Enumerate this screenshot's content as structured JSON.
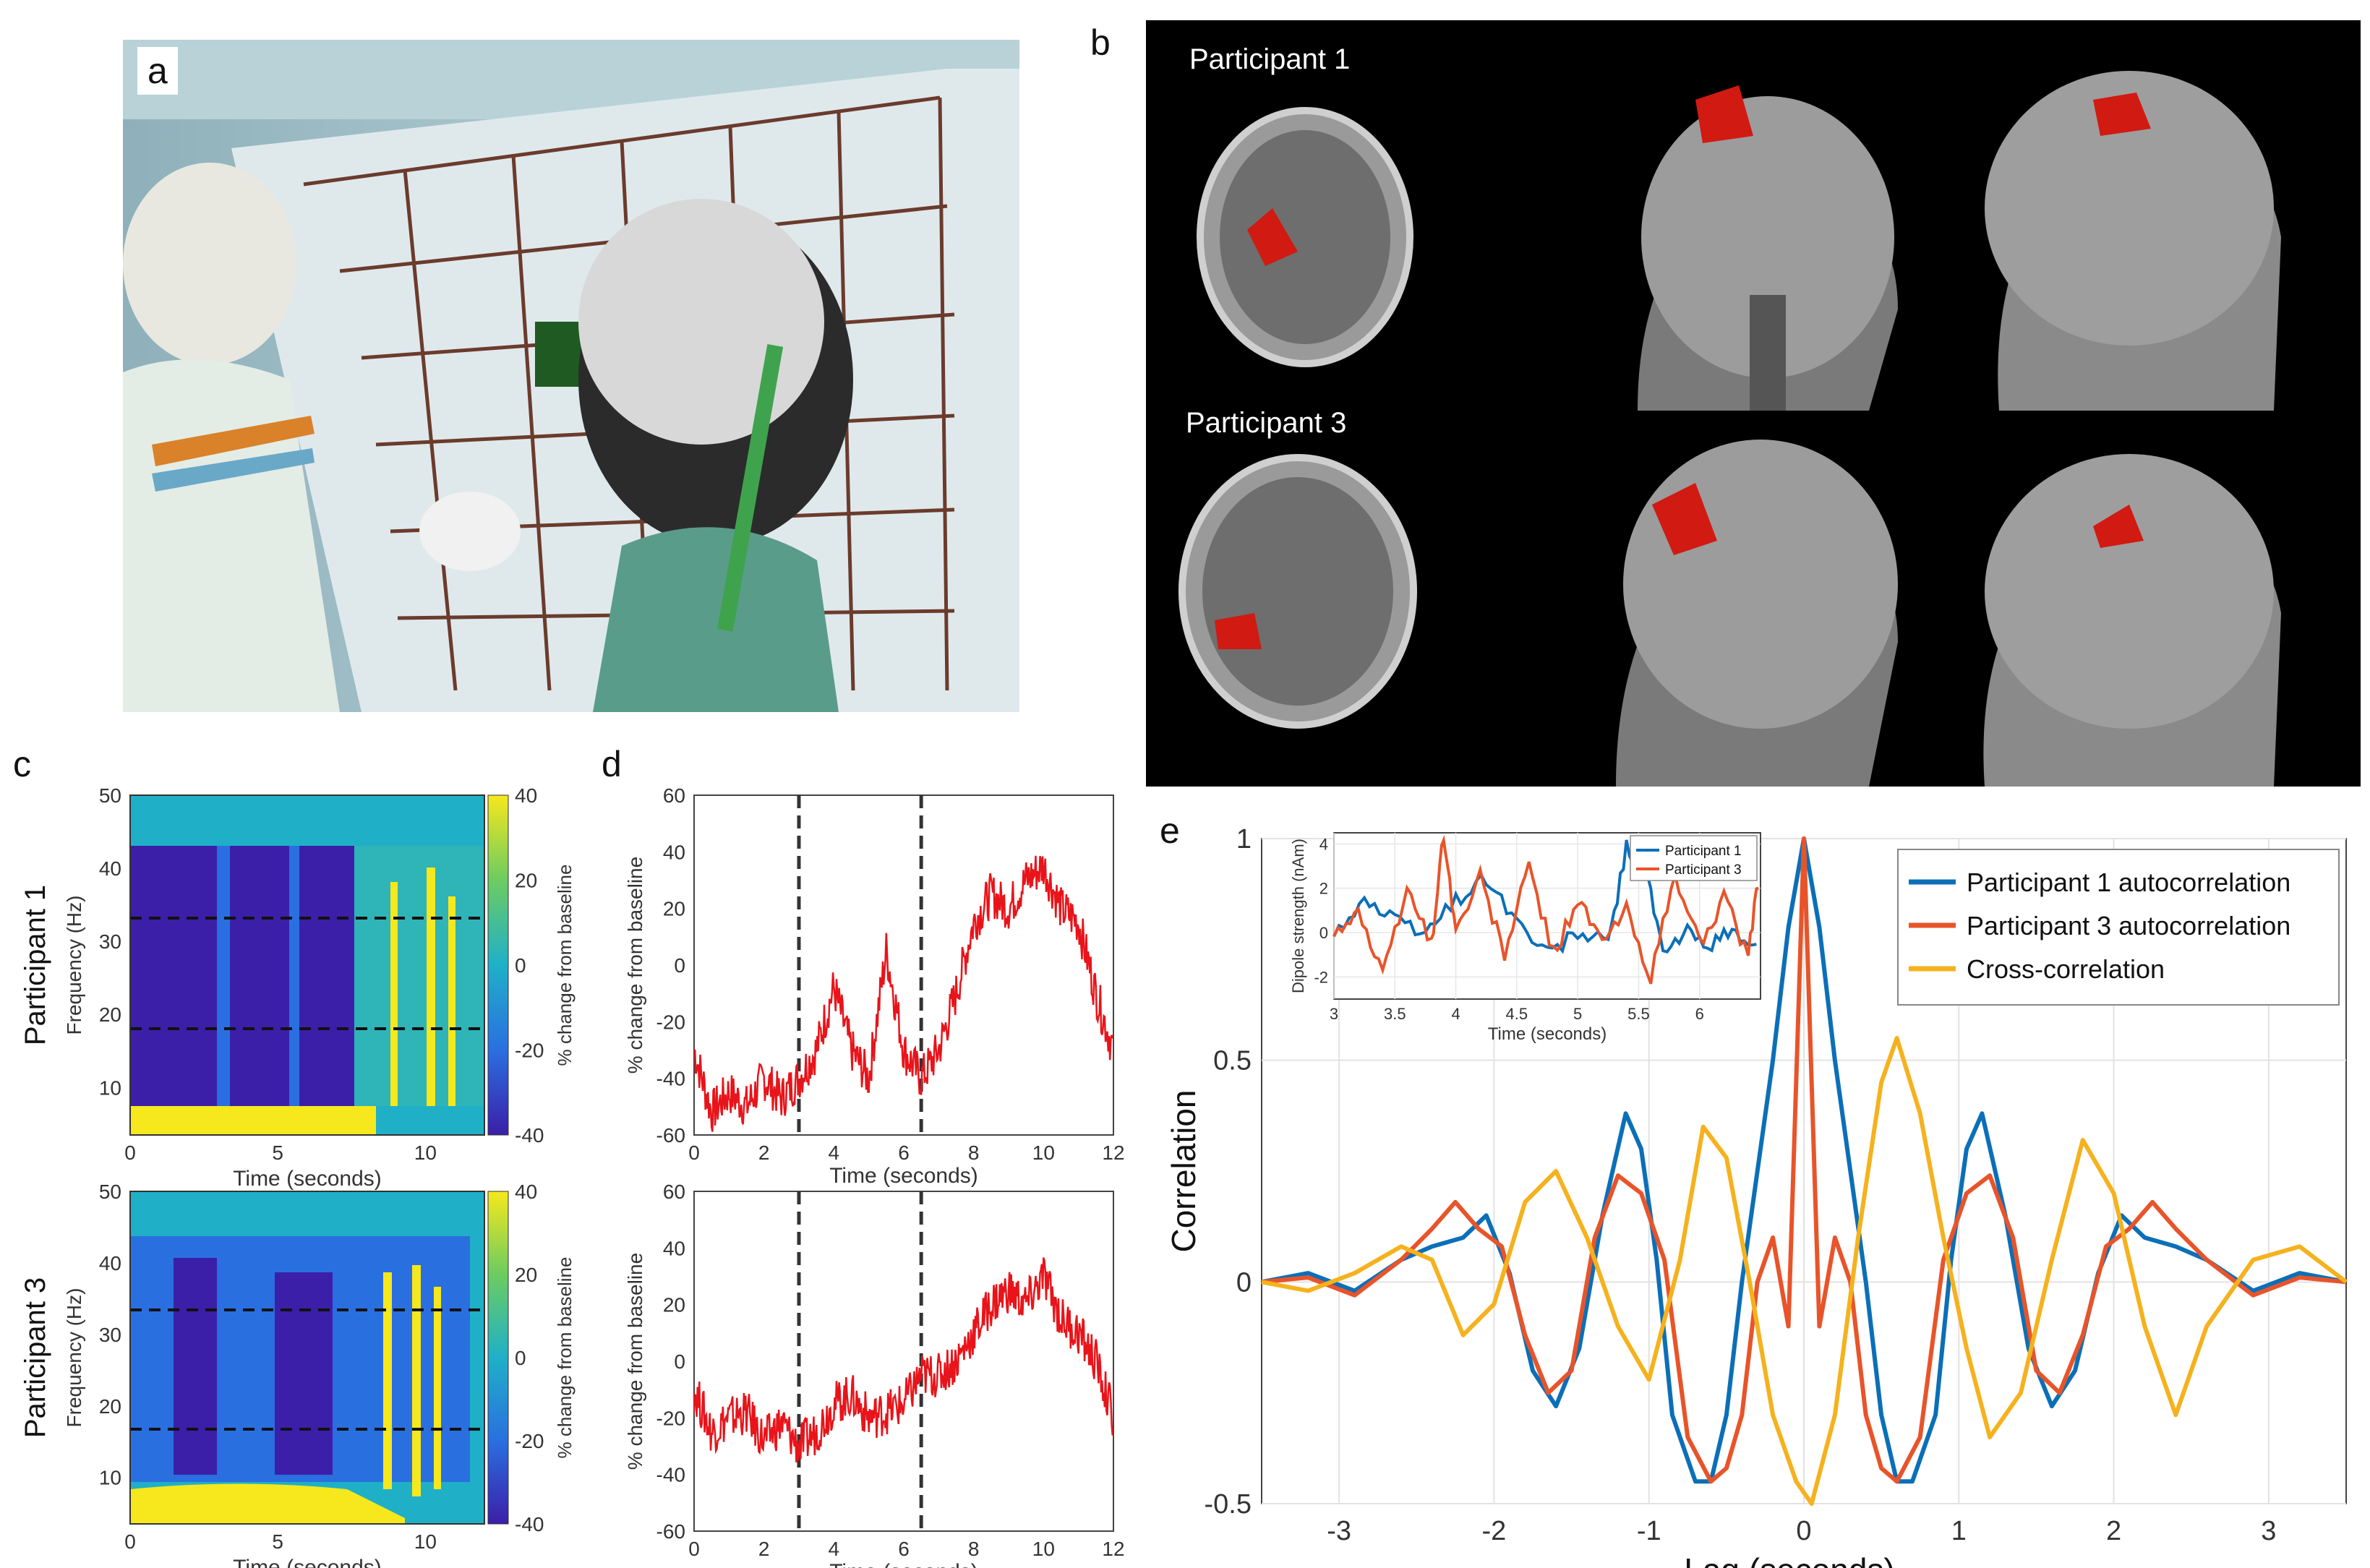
{
  "panels": {
    "a": "a",
    "b": "b",
    "c": "c",
    "d": "d",
    "e": "e"
  },
  "panel_b": {
    "participant_1": "Participant 1",
    "participant_3": "Participant 3"
  },
  "panel_c": {
    "row_labels": [
      "Participant 1",
      "Participant 3"
    ],
    "ylabel": "Frequency (Hz)",
    "xlabel": "Time (seconds)",
    "colorbar_label": "% change from baseline",
    "x_ticks": [
      "0",
      "5",
      "10"
    ],
    "y_ticks": [
      "50",
      "40",
      "30",
      "20",
      "10"
    ],
    "colorbar_ticks": [
      "40",
      "20",
      "0",
      "-20",
      "-40"
    ],
    "dashed_lines_hz": [
      13,
      30
    ],
    "colors": {
      "low": "#3b1fa8",
      "mid": "#1fb0c8",
      "high": "#f6e81c"
    }
  },
  "chart_data": [
    {
      "type": "line",
      "panel": "d",
      "xlabel": "Time (seconds)",
      "ylabel": "% change from baseline",
      "xlim": [
        0,
        12
      ],
      "ylim": [
        -60,
        60
      ],
      "x_ticks": [
        "0",
        "2",
        "4",
        "6",
        "8",
        "10",
        "12"
      ],
      "y_ticks": [
        "60",
        "40",
        "20",
        "0",
        "-20",
        "-40",
        "-60"
      ],
      "dashed_x": [
        3,
        6.5
      ],
      "line_color": "#e8141a",
      "traces": [
        {
          "x": [
            0,
            0.5,
            1,
            1.5,
            2,
            2.5,
            3,
            3.5,
            4,
            4.5,
            5,
            5.5,
            6,
            6.5,
            7,
            7.5,
            8,
            8.5,
            9,
            9.5,
            10,
            10.5,
            11,
            11.5,
            12
          ],
          "y": [
            -30,
            -52,
            -45,
            -50,
            -40,
            -47,
            -40,
            -30,
            -8,
            -30,
            -40,
            5,
            -30,
            -40,
            -30,
            -10,
            15,
            25,
            20,
            30,
            35,
            20,
            15,
            -10,
            -30
          ]
        },
        {
          "x": [
            0,
            0.5,
            1,
            1.5,
            2,
            2.5,
            3,
            3.5,
            4,
            4.5,
            5,
            5.5,
            6,
            6.5,
            7,
            7.5,
            8,
            8.5,
            9,
            9.5,
            10,
            10.5,
            11,
            11.5,
            12
          ],
          "y": [
            -10,
            -25,
            -20,
            -18,
            -28,
            -22,
            -30,
            -25,
            -15,
            -12,
            -20,
            -18,
            -15,
            -5,
            -5,
            0,
            10,
            20,
            25,
            20,
            30,
            15,
            10,
            0,
            -20
          ]
        }
      ]
    },
    {
      "type": "line",
      "panel": "e",
      "xlabel": "Lag (seconds)",
      "ylabel": "Correlation",
      "xlim": [
        -3.5,
        3.5
      ],
      "ylim": [
        -0.5,
        1
      ],
      "x_ticks": [
        "-3",
        "-2",
        "-1",
        "0",
        "1",
        "2",
        "3"
      ],
      "y_ticks": [
        "1",
        "0.5",
        "0",
        "-0.5"
      ],
      "series": [
        {
          "name": "Participant 1 autocorrelation",
          "color": "#0b6fb8",
          "x": [
            -3.5,
            -3.2,
            -2.9,
            -2.6,
            -2.4,
            -2.2,
            -2.05,
            -1.9,
            -1.75,
            -1.6,
            -1.45,
            -1.3,
            -1.15,
            -1.05,
            -0.95,
            -0.85,
            -0.7,
            -0.6,
            -0.5,
            -0.4,
            -0.3,
            -0.2,
            -0.1,
            0,
            0.1,
            0.2,
            0.3,
            0.4,
            0.5,
            0.6,
            0.7,
            0.85,
            0.95,
            1.05,
            1.15,
            1.3,
            1.45,
            1.6,
            1.75,
            1.9,
            2.05,
            2.2,
            2.4,
            2.6,
            2.9,
            3.2,
            3.5
          ],
          "y": [
            0,
            0.02,
            -0.02,
            0.05,
            0.08,
            0.1,
            0.15,
            0.02,
            -0.2,
            -0.28,
            -0.15,
            0.15,
            0.38,
            0.3,
            0.05,
            -0.3,
            -0.45,
            -0.45,
            -0.3,
            0,
            0.25,
            0.5,
            0.8,
            1,
            0.8,
            0.5,
            0.25,
            0,
            -0.3,
            -0.45,
            -0.45,
            -0.3,
            0.05,
            0.3,
            0.38,
            0.15,
            -0.15,
            -0.28,
            -0.2,
            0.02,
            0.15,
            0.1,
            0.08,
            0.05,
            -0.02,
            0.02,
            0
          ]
        },
        {
          "name": "Participant 3 autocorrelation",
          "color": "#e8542a",
          "x": [
            -3.5,
            -3.2,
            -2.9,
            -2.6,
            -2.4,
            -2.25,
            -2.1,
            -1.95,
            -1.8,
            -1.65,
            -1.5,
            -1.35,
            -1.2,
            -1.05,
            -0.9,
            -0.75,
            -0.6,
            -0.5,
            -0.4,
            -0.3,
            -0.2,
            -0.1,
            0,
            0.1,
            0.2,
            0.3,
            0.4,
            0.5,
            0.6,
            0.75,
            0.9,
            1.05,
            1.2,
            1.35,
            1.5,
            1.65,
            1.8,
            1.95,
            2.1,
            2.25,
            2.4,
            2.6,
            2.9,
            3.2,
            3.5
          ],
          "y": [
            0,
            0.01,
            -0.03,
            0.05,
            0.12,
            0.18,
            0.12,
            0.08,
            -0.12,
            -0.25,
            -0.2,
            0.1,
            0.24,
            0.2,
            0.05,
            -0.35,
            -0.45,
            -0.42,
            -0.3,
            0,
            0.1,
            -0.1,
            1,
            -0.1,
            0.1,
            0,
            -0.3,
            -0.42,
            -0.45,
            -0.35,
            0.05,
            0.2,
            0.24,
            0.1,
            -0.2,
            -0.25,
            -0.12,
            0.08,
            0.12,
            0.18,
            0.12,
            0.05,
            -0.03,
            0.01,
            0
          ]
        },
        {
          "name": "Cross-correlation",
          "color": "#f5b21e",
          "x": [
            -3.5,
            -3.2,
            -2.9,
            -2.6,
            -2.4,
            -2.2,
            -2.0,
            -1.8,
            -1.6,
            -1.4,
            -1.2,
            -1.0,
            -0.8,
            -0.65,
            -0.5,
            -0.35,
            -0.2,
            -0.05,
            0.05,
            0.2,
            0.35,
            0.5,
            0.6,
            0.75,
            0.9,
            1.05,
            1.2,
            1.4,
            1.6,
            1.8,
            2.0,
            2.2,
            2.4,
            2.6,
            2.9,
            3.2,
            3.5
          ],
          "y": [
            0,
            -0.02,
            0.02,
            0.08,
            0.05,
            -0.12,
            -0.05,
            0.18,
            0.25,
            0.1,
            -0.1,
            -0.22,
            0.05,
            0.35,
            0.28,
            0,
            -0.3,
            -0.45,
            -0.5,
            -0.3,
            0.1,
            0.45,
            0.55,
            0.38,
            0.1,
            -0.15,
            -0.35,
            -0.25,
            0.05,
            0.32,
            0.2,
            -0.1,
            -0.3,
            -0.1,
            0.05,
            0.08,
            0
          ]
        }
      ],
      "legend_placement": "top-right",
      "grid": true
    },
    {
      "type": "line",
      "panel": "e-inset",
      "xlabel": "Time (seconds)",
      "ylabel": "Dipole strength (nAm)",
      "xlim": [
        3,
        6.5
      ],
      "ylim": [
        -3,
        4.5
      ],
      "x_ticks": [
        "3",
        "3.5",
        "4",
        "4.5",
        "5",
        "5.5",
        "6"
      ],
      "y_ticks": [
        "4",
        "2",
        "0",
        "-2"
      ],
      "series": [
        {
          "name": "Participant 1",
          "color": "#0b6fb8",
          "x": [
            3,
            3.25,
            3.5,
            3.75,
            4,
            4.25,
            4.5,
            4.75,
            5,
            5.25,
            5.4,
            5.55,
            5.7,
            5.9,
            6.1,
            6.3,
            6.5
          ],
          "y": [
            0,
            1.5,
            0.5,
            0,
            1.5,
            2.5,
            0.5,
            -1,
            0,
            -0.5,
            3.8,
            3,
            -1,
            0,
            -0.5,
            0,
            -1
          ]
        },
        {
          "name": "Participant 3",
          "color": "#e8542a",
          "x": [
            3,
            3.2,
            3.4,
            3.6,
            3.8,
            3.9,
            4.0,
            4.2,
            4.4,
            4.6,
            4.8,
            5,
            5.2,
            5.4,
            5.6,
            5.8,
            6,
            6.2,
            6.4,
            6.5
          ],
          "y": [
            0,
            1,
            -2,
            2,
            -0.5,
            4.5,
            0,
            2.5,
            -1,
            3,
            -1,
            1.5,
            -0.5,
            1,
            -2,
            2.5,
            -0.5,
            1.5,
            -1,
            3
          ]
        }
      ],
      "legend_placement": "top"
    }
  ]
}
